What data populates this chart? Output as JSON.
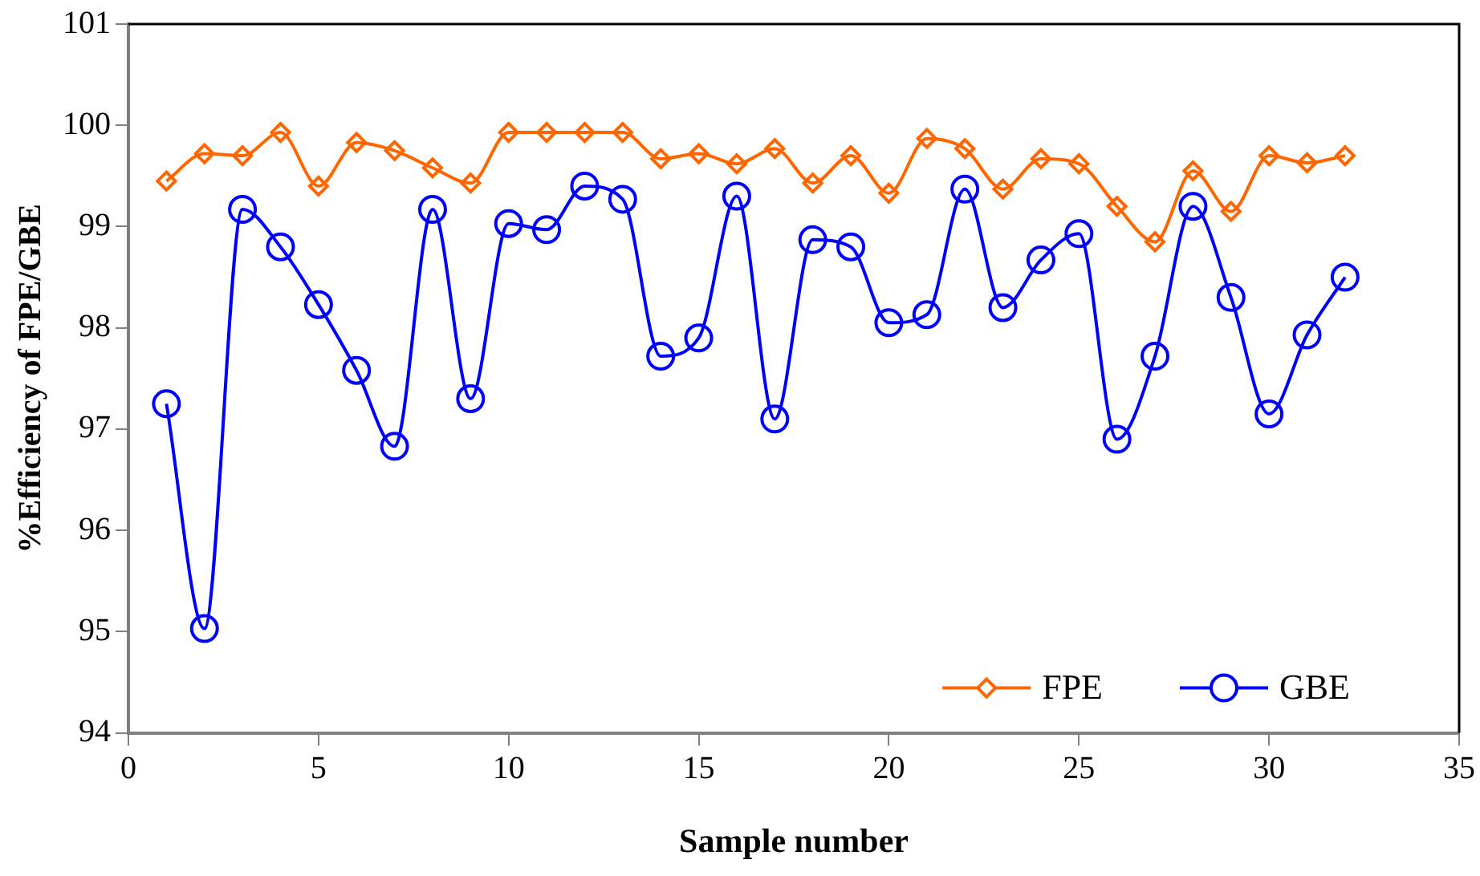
{
  "chart_data": {
    "type": "line",
    "xlabel": "Sample number",
    "ylabel": "%Efficiency of FPE/GBE",
    "x": [
      1,
      2,
      3,
      4,
      5,
      6,
      7,
      8,
      9,
      10,
      11,
      12,
      13,
      14,
      15,
      16,
      17,
      18,
      19,
      20,
      21,
      22,
      23,
      24,
      25,
      26,
      27,
      28,
      29,
      30,
      31,
      32
    ],
    "series": [
      {
        "name": "FPE",
        "color": "#ff6600",
        "marker": "diamond",
        "values": [
          99.45,
          99.72,
          99.7,
          99.93,
          99.4,
          99.83,
          99.75,
          99.58,
          99.43,
          99.93,
          99.93,
          99.93,
          99.93,
          99.67,
          99.72,
          99.62,
          99.77,
          99.43,
          99.7,
          99.33,
          99.87,
          99.77,
          99.37,
          99.67,
          99.62,
          99.2,
          98.85,
          99.55,
          99.15,
          99.7,
          99.63,
          99.7
        ]
      },
      {
        "name": "GBE",
        "color": "#0000ff",
        "marker": "circle",
        "values": [
          97.25,
          95.03,
          99.17,
          98.8,
          98.23,
          97.58,
          96.83,
          99.17,
          97.3,
          99.03,
          98.97,
          99.4,
          99.27,
          97.72,
          97.9,
          99.3,
          97.1,
          98.87,
          98.8,
          98.05,
          98.13,
          99.37,
          98.2,
          98.67,
          98.93,
          96.9,
          97.72,
          99.2,
          98.3,
          97.15,
          97.93,
          98.5
        ]
      }
    ],
    "xlim": [
      0,
      35
    ],
    "xticks": [
      0,
      5,
      10,
      15,
      20,
      25,
      30,
      35
    ],
    "ylim": [
      94,
      101
    ],
    "yticks": [
      94,
      95,
      96,
      97,
      98,
      99,
      100,
      101
    ],
    "grid": false,
    "legend": "bottom right",
    "line_style": "solid"
  }
}
